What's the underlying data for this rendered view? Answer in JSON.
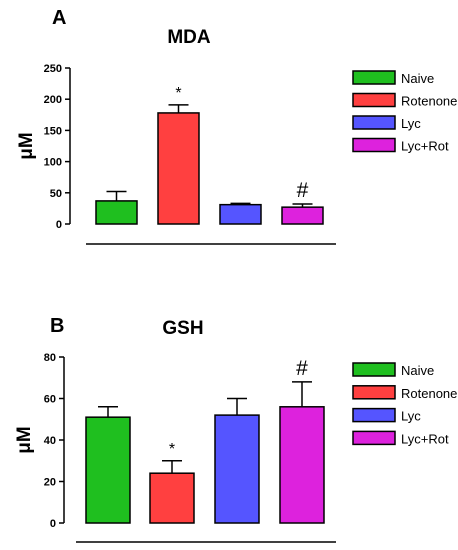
{
  "chart_data": [
    {
      "type": "bar",
      "panel": "A",
      "title": "MDA",
      "xlabel": "",
      "ylabel": "μM",
      "ylim": [
        0,
        250
      ],
      "yticks": [
        0,
        50,
        100,
        150,
        200,
        250
      ],
      "categories": [
        "Naive",
        "Rotenone",
        "Lyc",
        "Lyc+Rot"
      ],
      "values": [
        37,
        178,
        31,
        27
      ],
      "errors": [
        15,
        13,
        2,
        5
      ],
      "annotations": [
        "",
        "*",
        "",
        "#"
      ],
      "colors": [
        "#1fbf1f",
        "#ff4040",
        "#5555ff",
        "#dd22dd"
      ],
      "legend": {
        "position": "right",
        "entries": [
          "Naive",
          "Rotenone",
          "Lyc",
          "Lyc+Rot"
        ]
      }
    },
    {
      "type": "bar",
      "panel": "B",
      "title": "GSH",
      "xlabel": "",
      "ylabel": "μM",
      "ylim": [
        0,
        80
      ],
      "yticks": [
        0,
        20,
        40,
        60,
        80
      ],
      "categories": [
        "Naive",
        "Rotenone",
        "Lyc",
        "Lyc+Rot"
      ],
      "values": [
        51,
        24,
        52,
        56
      ],
      "errors": [
        5,
        6,
        8,
        12
      ],
      "annotations": [
        "",
        "*",
        "",
        "#"
      ],
      "colors": [
        "#1fbf1f",
        "#ff4040",
        "#5555ff",
        "#dd22dd"
      ],
      "legend": {
        "position": "right",
        "entries": [
          "Naive",
          "Rotenone",
          "Lyc",
          "Lyc+Rot"
        ]
      }
    }
  ]
}
